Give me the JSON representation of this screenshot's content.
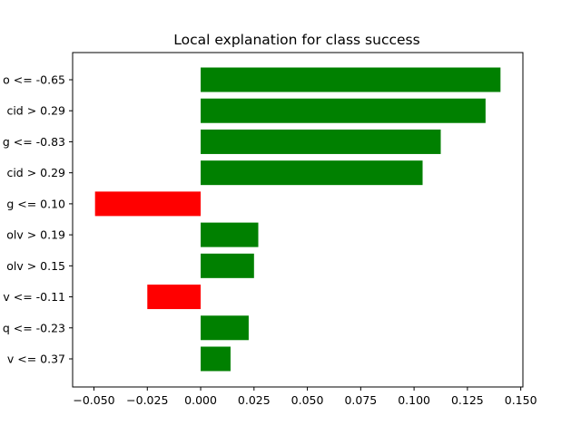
{
  "chart_data": {
    "type": "bar",
    "orientation": "horizontal",
    "title": "Local explanation for class success",
    "xlabel": "",
    "ylabel": "",
    "xlim": [
      -0.06,
      0.151
    ],
    "x_ticks": [
      -0.05,
      -0.025,
      0.0,
      0.025,
      0.05,
      0.075,
      0.1,
      0.125,
      0.15
    ],
    "x_tick_labels": [
      "−0.050",
      "−0.025",
      "0.000",
      "0.025",
      "0.050",
      "0.075",
      "0.100",
      "0.125",
      "0.150"
    ],
    "grid": false,
    "legend": "none",
    "positive_color": "#008000",
    "negative_color": "#ff0000",
    "categories": [
      "o <= -0.65",
      "cid > 0.29",
      "g <= -0.83",
      "cid > 0.29",
      "g <= 0.10",
      "olv > 0.19",
      "olv > 0.15",
      "v <= -0.11",
      "q <= -0.23",
      "v <= 0.37"
    ],
    "values": [
      0.1405,
      0.1335,
      0.1125,
      0.104,
      -0.0495,
      0.027,
      0.025,
      -0.025,
      0.0225,
      0.014
    ]
  }
}
